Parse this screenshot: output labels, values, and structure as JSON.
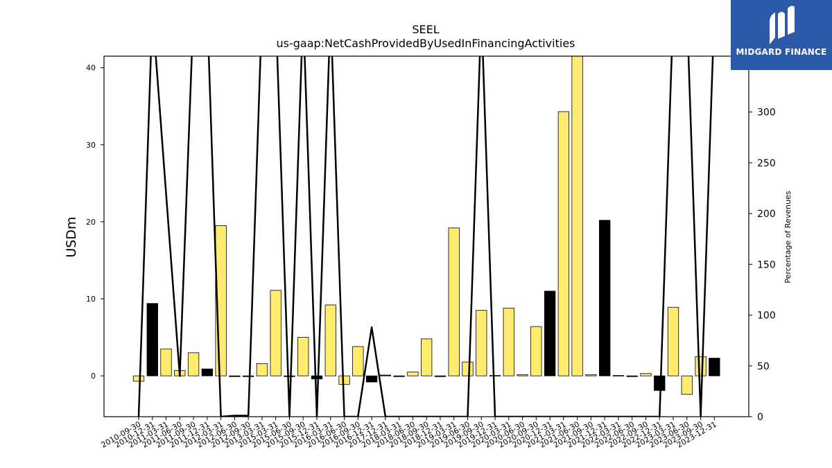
{
  "brand": {
    "logo_text": "MIDGARD FINANCE",
    "logo_color": "#2d5aa8"
  },
  "chart_data": {
    "type": "bar",
    "title": "SEEL",
    "subtitle": "us-gaap:NetCashProvidedByUsedInFinancingActivities",
    "ylabel": "USDm",
    "y2label": "Percentage of Revenues",
    "ylim": [
      -5.3,
      41.5
    ],
    "y2lim": [
      0,
      355
    ],
    "yticks": [
      0,
      10,
      20,
      30,
      40
    ],
    "y2ticks": [
      0,
      50,
      100,
      150,
      200,
      250,
      300
    ],
    "grid": false,
    "colors": {
      "yellow": "#ffec6e",
      "black": "#000000",
      "line": "#000000"
    },
    "categories": [
      "2010-09-30",
      "2010-12-31",
      "2011-03-31",
      "2011-06-30",
      "2011-09-30",
      "2011-12-31",
      "2012-03-31",
      "2012-06-30",
      "2012-09-30",
      "2013-03-31",
      "2015-03-31",
      "2015-06-30",
      "2015-09-30",
      "2015-12-31",
      "2016-03-31",
      "2016-06-30",
      "2016-09-30",
      "2016-12-31",
      "2017-12-31",
      "2018-03-31",
      "2018-06-30",
      "2018-09-30",
      "2018-12-31",
      "2019-03-31",
      "2019-06-30",
      "2019-09-30",
      "2019-12-31",
      "2020-03-31",
      "2020-06-30",
      "2020-09-30",
      "2020-12-31",
      "2021-03-31",
      "2021-06-30",
      "2021-09-30",
      "2021-12-31",
      "2022-03-31",
      "2022-06-30",
      "2022-09-30",
      "2022-12-31",
      "2023-03-31",
      "2023-06-30",
      "2023-09-30",
      "2023-12-31"
    ],
    "series": [
      {
        "values": [
          -0.7,
          9.4,
          3.5,
          0.7,
          3.0,
          0.9,
          19.5,
          -0.1,
          -0.1,
          1.6,
          11.1,
          -0.1,
          5.0,
          -0.4,
          9.2,
          -1.1,
          3.8,
          -0.8,
          0.1,
          -0.1,
          0.5,
          4.8,
          -0.1,
          19.2,
          1.8,
          8.5,
          0.05,
          8.8,
          0.15,
          6.4,
          11.0,
          34.3,
          41.8,
          0.15,
          20.2,
          0.05,
          -0.1,
          0.3,
          -1.9,
          8.9,
          -2.4,
          2.5,
          2.3
        ],
        "bar_colors": [
          "yellow",
          "black",
          "yellow",
          "yellow",
          "yellow",
          "black",
          "yellow",
          "black",
          "black",
          "yellow",
          "yellow",
          "black",
          "yellow",
          "black",
          "yellow",
          "yellow",
          "yellow",
          "black",
          "black",
          "black",
          "yellow",
          "yellow",
          "black",
          "yellow",
          "yellow",
          "yellow",
          "black",
          "yellow",
          "yellow",
          "yellow",
          "black",
          "yellow",
          "yellow",
          "yellow",
          "black",
          "black",
          "black",
          "yellow",
          "black",
          "yellow",
          "yellow",
          "yellow",
          "black"
        ]
      },
      {
        "axis": "right",
        "type": "line",
        "values": [
          0,
          400,
          220,
          40,
          400,
          400,
          0,
          1,
          1,
          400,
          400,
          0,
          400,
          0,
          400,
          0,
          0,
          88,
          0,
          0,
          0,
          0,
          0,
          0,
          0,
          400,
          0,
          0,
          0,
          0,
          0,
          0,
          0,
          0,
          0,
          0,
          0,
          0,
          0,
          400,
          400,
          0,
          400
        ]
      }
    ]
  }
}
